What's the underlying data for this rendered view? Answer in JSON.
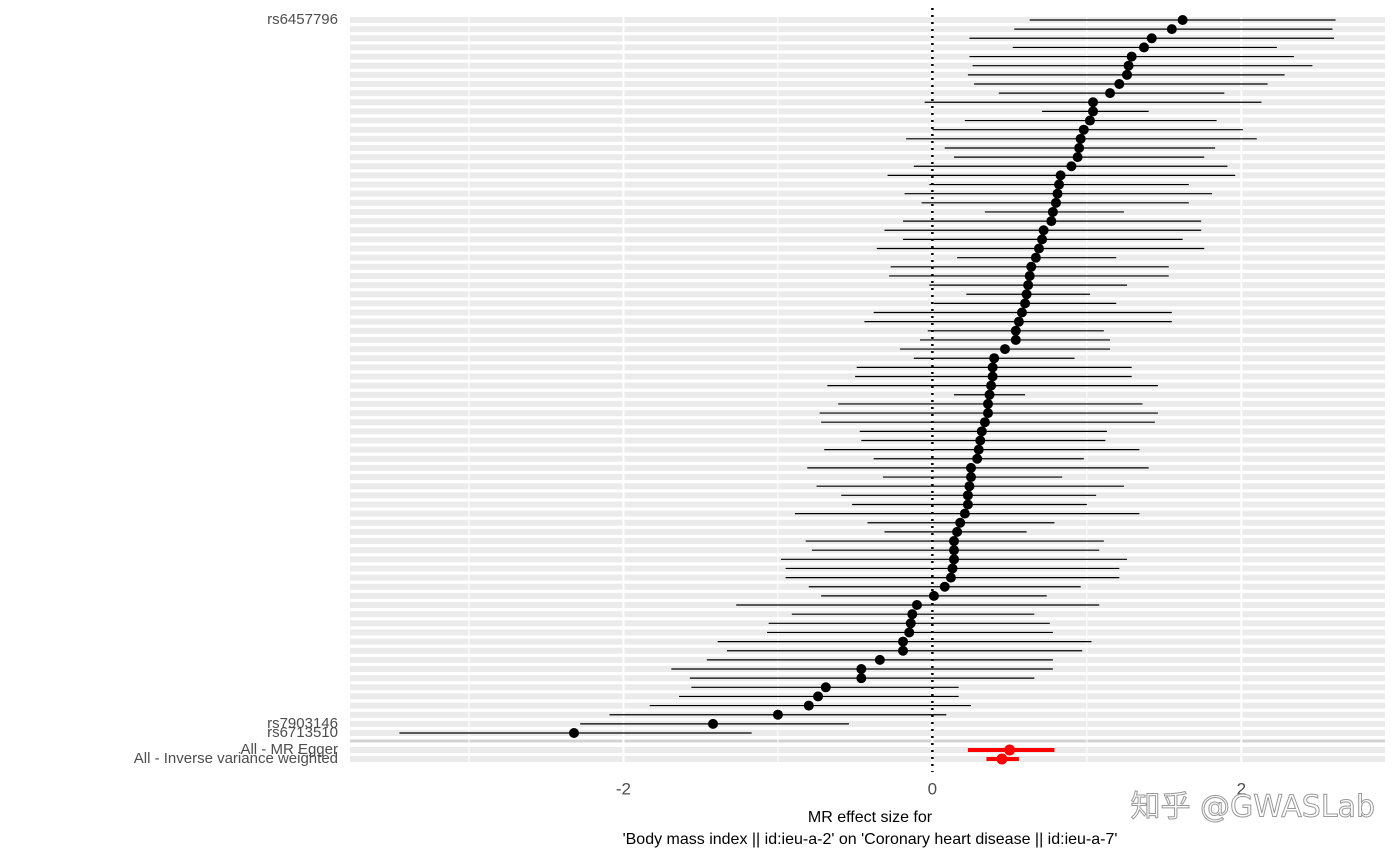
{
  "chart_data": {
    "type": "forest",
    "xlabel": "MR effect size for",
    "xlabel2": "'Body mass index || id:ieu-a-2' on 'Coronary heart disease || id:ieu-a-7'",
    "xlim": [
      -3.77,
      2.93
    ],
    "xticks": [
      -2,
      0,
      2
    ],
    "xminor": [
      -3,
      -1,
      1
    ],
    "refline": 0,
    "color": "#000000",
    "categories": [
      "rs6457796",
      null,
      null,
      null,
      null,
      null,
      null,
      null,
      null,
      null,
      null,
      null,
      null,
      null,
      null,
      null,
      null,
      null,
      null,
      null,
      null,
      null,
      null,
      null,
      null,
      null,
      null,
      null,
      null,
      null,
      null,
      null,
      null,
      null,
      null,
      null,
      null,
      null,
      null,
      null,
      null,
      null,
      null,
      null,
      null,
      null,
      null,
      null,
      null,
      null,
      null,
      null,
      null,
      null,
      null,
      null,
      null,
      null,
      null,
      null,
      null,
      null,
      null,
      null,
      null,
      null,
      null,
      null,
      null,
      null,
      null,
      null,
      null,
      null,
      null,
      null,
      null,
      "rs7903146",
      "rs6713510"
    ],
    "values": [
      1.62,
      1.55,
      1.42,
      1.37,
      1.29,
      1.27,
      1.26,
      1.21,
      1.15,
      1.04,
      1.04,
      1.02,
      0.98,
      0.96,
      0.95,
      0.94,
      0.9,
      0.83,
      0.82,
      0.81,
      0.8,
      0.78,
      0.77,
      0.72,
      0.71,
      0.69,
      0.67,
      0.64,
      0.63,
      0.62,
      0.61,
      0.6,
      0.58,
      0.56,
      0.54,
      0.54,
      0.47,
      0.4,
      0.39,
      0.39,
      0.38,
      0.37,
      0.36,
      0.36,
      0.34,
      0.32,
      0.31,
      0.3,
      0.29,
      0.25,
      0.25,
      0.24,
      0.23,
      0.23,
      0.21,
      0.18,
      0.16,
      0.14,
      0.14,
      0.14,
      0.13,
      0.12,
      0.08,
      0.01,
      -0.1,
      -0.13,
      -0.14,
      -0.15,
      -0.19,
      -0.19,
      -0.34,
      -0.46,
      -0.46,
      -0.69,
      -0.74,
      -0.8,
      -1.0,
      -1.42,
      -2.32
    ],
    "ci_low": [
      0.63,
      0.53,
      0.24,
      0.52,
      0.24,
      0.26,
      0.23,
      0.27,
      0.43,
      -0.05,
      0.71,
      0.21,
      0.0,
      -0.17,
      0.08,
      0.14,
      -0.12,
      -0.29,
      -0.02,
      -0.18,
      -0.07,
      0.34,
      -0.19,
      -0.31,
      -0.19,
      -0.36,
      0.16,
      -0.27,
      -0.28,
      -0.02,
      0.22,
      0.01,
      -0.38,
      -0.44,
      -0.03,
      -0.08,
      -0.21,
      -0.12,
      -0.49,
      -0.5,
      -0.68,
      0.14,
      -0.61,
      -0.73,
      -0.72,
      -0.47,
      -0.46,
      -0.7,
      -0.38,
      -0.81,
      -0.32,
      -0.75,
      -0.59,
      -0.52,
      -0.89,
      -0.42,
      -0.31,
      -0.82,
      -0.78,
      -0.98,
      -0.95,
      -0.95,
      -0.8,
      -0.72,
      -1.27,
      -0.91,
      -1.06,
      -1.07,
      -1.39,
      -1.33,
      -1.46,
      -1.69,
      -1.57,
      -1.56,
      -1.64,
      -1.83,
      -2.09,
      -2.28,
      -3.45
    ],
    "ci_high": [
      2.61,
      2.59,
      2.6,
      2.23,
      2.34,
      2.46,
      2.28,
      2.17,
      1.89,
      2.13,
      1.4,
      1.84,
      2.01,
      2.1,
      1.83,
      1.76,
      1.91,
      1.96,
      1.66,
      1.81,
      1.66,
      1.24,
      1.74,
      1.74,
      1.62,
      1.76,
      1.19,
      1.53,
      1.53,
      1.26,
      1.02,
      1.19,
      1.55,
      1.55,
      1.11,
      1.15,
      1.15,
      0.92,
      1.29,
      1.29,
      1.46,
      0.6,
      1.36,
      1.46,
      1.44,
      1.13,
      1.12,
      1.34,
      0.98,
      1.4,
      0.84,
      1.24,
      1.06,
      1.0,
      1.34,
      0.79,
      0.61,
      1.11,
      1.08,
      1.26,
      1.21,
      1.21,
      0.96,
      0.74,
      1.08,
      0.66,
      0.76,
      0.78,
      1.03,
      0.97,
      0.78,
      0.78,
      0.66,
      0.17,
      0.17,
      0.25,
      0.09,
      -0.54,
      -1.17
    ],
    "summary": {
      "categories": [
        "All - MR Egger",
        "All - Inverse variance weighted"
      ],
      "values": [
        0.5,
        0.45
      ],
      "ci_low": [
        0.23,
        0.35
      ],
      "ci_high": [
        0.79,
        0.56
      ],
      "color": "#ff0000"
    },
    "watermark": "知乎 @GWASLab"
  }
}
